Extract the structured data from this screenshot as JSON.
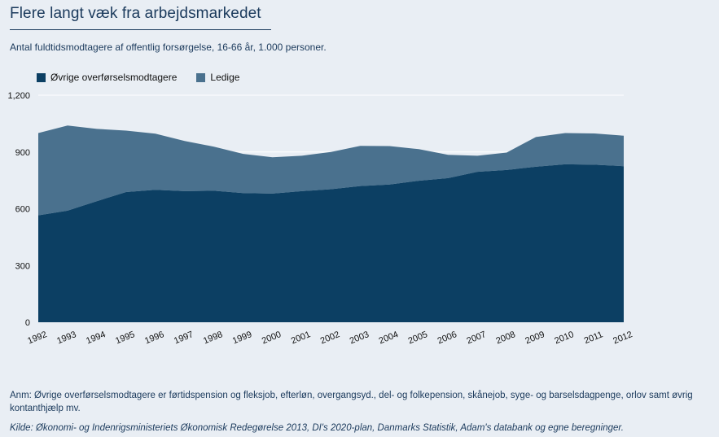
{
  "title": "Flere langt væk fra arbejdsmarkedet",
  "subtitle": "Antal fuldtidsmodtagere af offentlig forsørgelse, 16-66 år, 1.000 personer.",
  "note": "Anm: Øvrige overførselsmodtagere er førtidspension og fleksjob, efterløn, overgangsyd., del- og folkepension, skånejob, syge- og barselsdagpenge, orlov samt øvrig kontanthjælp mv.",
  "source": "Kilde: Økonomi- og Indenrigsministeriets Økonomisk Redegørelse 2013, DI's 2020-plan, Danmarks Statistik, Adam's databank og egne beregninger.",
  "colors": {
    "ovrige": "#0c3f63",
    "ledige": "#4a718e",
    "background": "#e9eef4"
  },
  "chart_data": {
    "type": "area",
    "stacked": true,
    "x": [
      "1992",
      "1993",
      "1994",
      "1995",
      "1996",
      "1997",
      "1998",
      "1999",
      "2000",
      "2001",
      "2002",
      "2003",
      "2004",
      "2005",
      "2006",
      "2007",
      "2008",
      "2009",
      "2010",
      "2011",
      "2012"
    ],
    "series": [
      {
        "name": "Øvrige overførselsmodtagere",
        "values": [
          565,
          590,
          640,
          688,
          700,
          693,
          695,
          683,
          680,
          693,
          703,
          720,
          728,
          748,
          762,
          795,
          805,
          822,
          835,
          833,
          825
        ]
      },
      {
        "name": "Ledige",
        "values": [
          435,
          450,
          382,
          325,
          297,
          265,
          233,
          207,
          192,
          187,
          197,
          212,
          203,
          167,
          123,
          85,
          92,
          157,
          165,
          165,
          161
        ]
      }
    ],
    "ylim": [
      0,
      1200
    ],
    "yticks": [
      "0",
      "300",
      "600",
      "900",
      "1,200"
    ],
    "ytick_values": [
      0,
      300,
      600,
      900,
      1200
    ],
    "grid": true,
    "legend_position": "top-left"
  }
}
